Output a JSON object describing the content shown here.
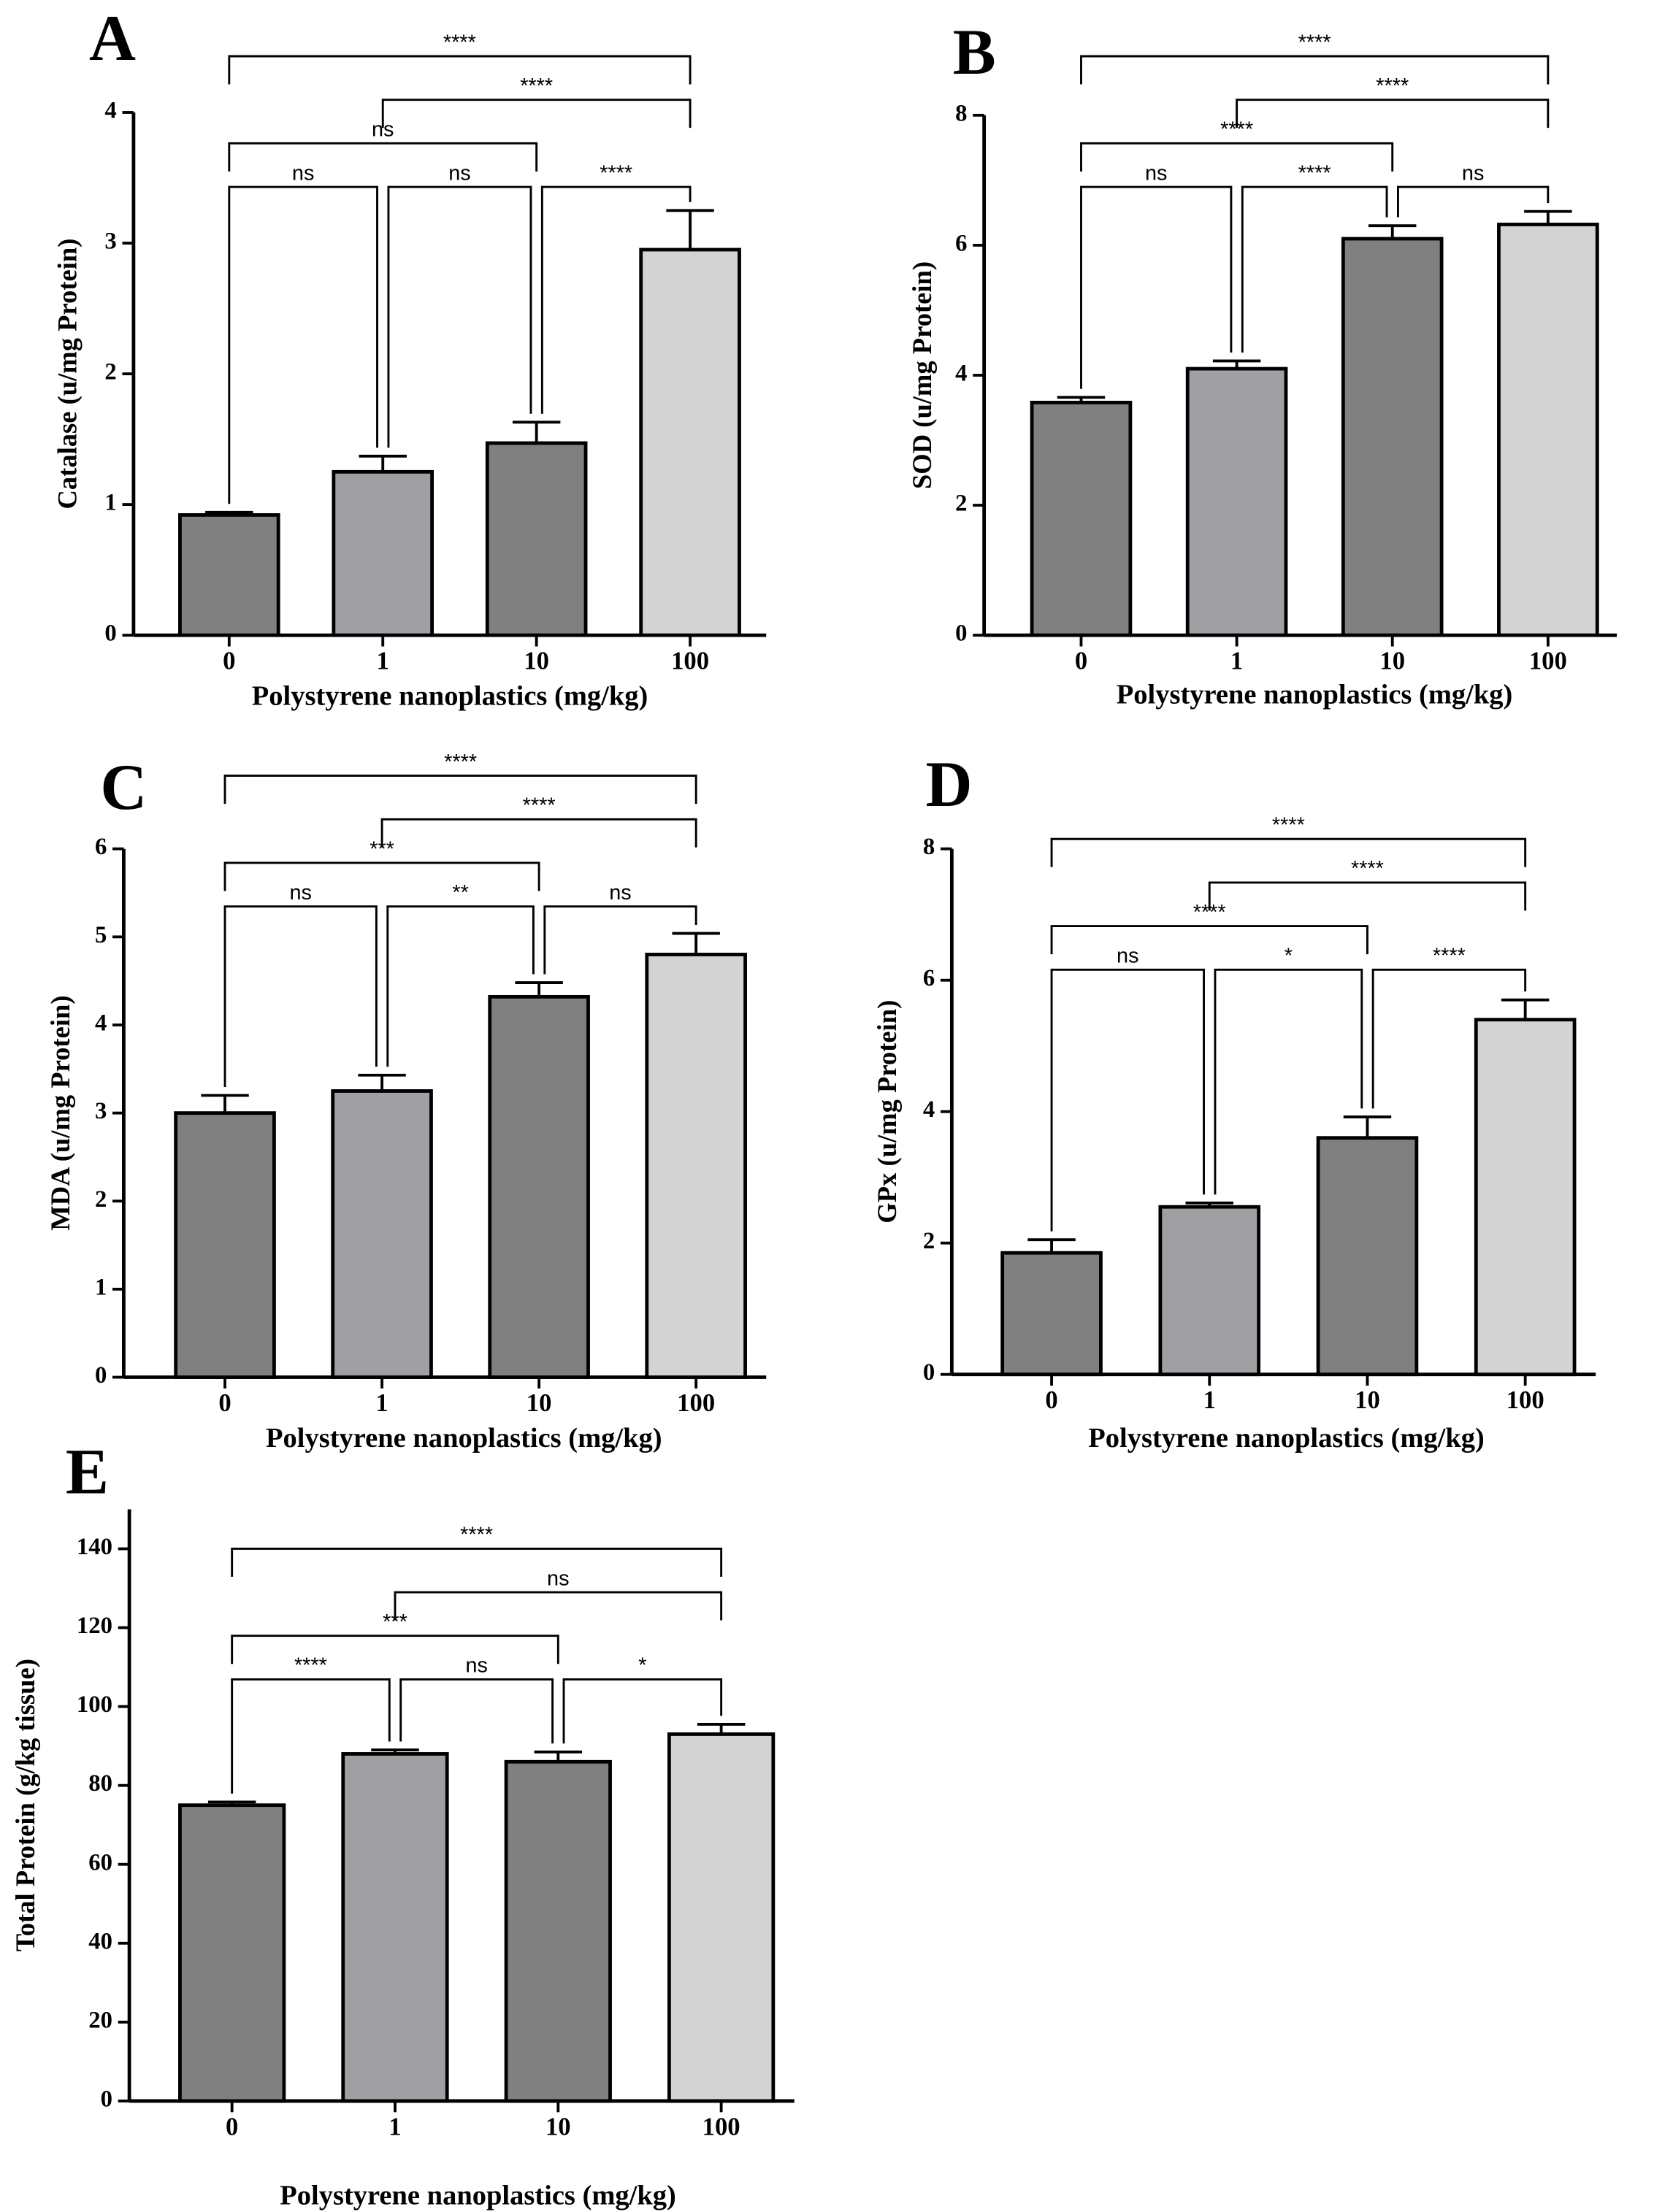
{
  "chart_data": [
    {
      "type": "bar",
      "panel": "A",
      "ylabel": "Catalase (u/mg Protein)",
      "xlabel": "Polystyrene nanoplastics (mg/kg)",
      "categories": [
        "0",
        "1",
        "10",
        "100"
      ],
      "values": [
        0.92,
        1.25,
        1.47,
        2.95
      ],
      "errors": [
        0.02,
        0.12,
        0.16,
        0.3
      ],
      "colors": [
        "#808080",
        "#a0a0a4",
        "#808080",
        "#d3d3d3"
      ],
      "ylim": [
        0,
        4
      ],
      "yticks": [
        0,
        1,
        2,
        3,
        4
      ],
      "comparisons": [
        {
          "pair": [
            "0",
            "1"
          ],
          "label": "ns"
        },
        {
          "pair": [
            "1",
            "10"
          ],
          "label": "ns"
        },
        {
          "pair": [
            "10",
            "100"
          ],
          "label": "****"
        },
        {
          "pair": [
            "0",
            "10"
          ],
          "label": "ns"
        },
        {
          "pair": [
            "1",
            "100"
          ],
          "label": "****"
        },
        {
          "pair": [
            "0",
            "100"
          ],
          "label": "****"
        }
      ]
    },
    {
      "type": "bar",
      "panel": "B",
      "ylabel": "SOD (u/mg Protein)",
      "xlabel": "Polystyrene nanoplastics (mg/kg)",
      "categories": [
        "0",
        "1",
        "10",
        "100"
      ],
      "values": [
        3.58,
        4.1,
        6.1,
        6.32
      ],
      "errors": [
        0.08,
        0.12,
        0.2,
        0.2
      ],
      "colors": [
        "#808080",
        "#a0a0a4",
        "#808080",
        "#d3d3d3"
      ],
      "ylim": [
        0,
        8
      ],
      "yticks": [
        0,
        2,
        4,
        6,
        8
      ],
      "comparisons": [
        {
          "pair": [
            "0",
            "1"
          ],
          "label": "ns"
        },
        {
          "pair": [
            "1",
            "10"
          ],
          "label": "****"
        },
        {
          "pair": [
            "10",
            "100"
          ],
          "label": "ns"
        },
        {
          "pair": [
            "0",
            "10"
          ],
          "label": "****"
        },
        {
          "pair": [
            "1",
            "100"
          ],
          "label": "****"
        },
        {
          "pair": [
            "0",
            "100"
          ],
          "label": "****"
        }
      ]
    },
    {
      "type": "bar",
      "panel": "C",
      "ylabel": "MDA (u/mg Protein)",
      "xlabel": "Polystyrene nanoplastics (mg/kg)",
      "categories": [
        "0",
        "1",
        "10",
        "100"
      ],
      "values": [
        3.0,
        3.25,
        4.32,
        4.8
      ],
      "errors": [
        0.2,
        0.18,
        0.16,
        0.24
      ],
      "colors": [
        "#808080",
        "#a0a0a4",
        "#808080",
        "#d3d3d3"
      ],
      "ylim": [
        0,
        6
      ],
      "yticks": [
        0,
        1,
        2,
        3,
        4,
        5,
        6
      ],
      "comparisons": [
        {
          "pair": [
            "0",
            "1"
          ],
          "label": "ns"
        },
        {
          "pair": [
            "1",
            "10"
          ],
          "label": "**"
        },
        {
          "pair": [
            "10",
            "100"
          ],
          "label": "ns"
        },
        {
          "pair": [
            "0",
            "10"
          ],
          "label": "***"
        },
        {
          "pair": [
            "1",
            "100"
          ],
          "label": "****"
        },
        {
          "pair": [
            "0",
            "100"
          ],
          "label": "****"
        }
      ]
    },
    {
      "type": "bar",
      "panel": "D",
      "ylabel": "GPx (u/mg Protein)",
      "xlabel": "Polystyrene nanoplastics (mg/kg)",
      "categories": [
        "0",
        "1",
        "10",
        "100"
      ],
      "values": [
        1.85,
        2.55,
        3.6,
        5.4
      ],
      "errors": [
        0.2,
        0.06,
        0.32,
        0.3
      ],
      "colors": [
        "#808080",
        "#a0a0a4",
        "#808080",
        "#d3d3d3"
      ],
      "ylim": [
        0,
        8
      ],
      "yticks": [
        0,
        2,
        4,
        6,
        8
      ],
      "comparisons": [
        {
          "pair": [
            "0",
            "1"
          ],
          "label": "ns"
        },
        {
          "pair": [
            "1",
            "10"
          ],
          "label": "*"
        },
        {
          "pair": [
            "10",
            "100"
          ],
          "label": "****"
        },
        {
          "pair": [
            "0",
            "10"
          ],
          "label": "****"
        },
        {
          "pair": [
            "1",
            "100"
          ],
          "label": "****"
        },
        {
          "pair": [
            "0",
            "100"
          ],
          "label": "****"
        }
      ]
    },
    {
      "type": "bar",
      "panel": "E",
      "ylabel": "Total Protein (g/kg tissue)",
      "xlabel": "Polystyrene nanoplastics (mg/kg)",
      "categories": [
        "0",
        "1",
        "10",
        "100"
      ],
      "values": [
        75,
        88,
        86,
        93
      ],
      "errors": [
        0.8,
        1,
        2.5,
        2.5
      ],
      "colors": [
        "#808080",
        "#a0a0a4",
        "#808080",
        "#d3d3d3"
      ],
      "ylim": [
        0,
        150
      ],
      "yticks": [
        0,
        20,
        40,
        60,
        80,
        100,
        120,
        140
      ],
      "comparisons": [
        {
          "pair": [
            "0",
            "1"
          ],
          "label": "****"
        },
        {
          "pair": [
            "1",
            "10"
          ],
          "label": "ns"
        },
        {
          "pair": [
            "10",
            "100"
          ],
          "label": "*"
        },
        {
          "pair": [
            "0",
            "10"
          ],
          "label": "***"
        },
        {
          "pair": [
            "1",
            "100"
          ],
          "label": "ns"
        },
        {
          "pair": [
            "0",
            "100"
          ],
          "label": "****"
        }
      ]
    }
  ]
}
